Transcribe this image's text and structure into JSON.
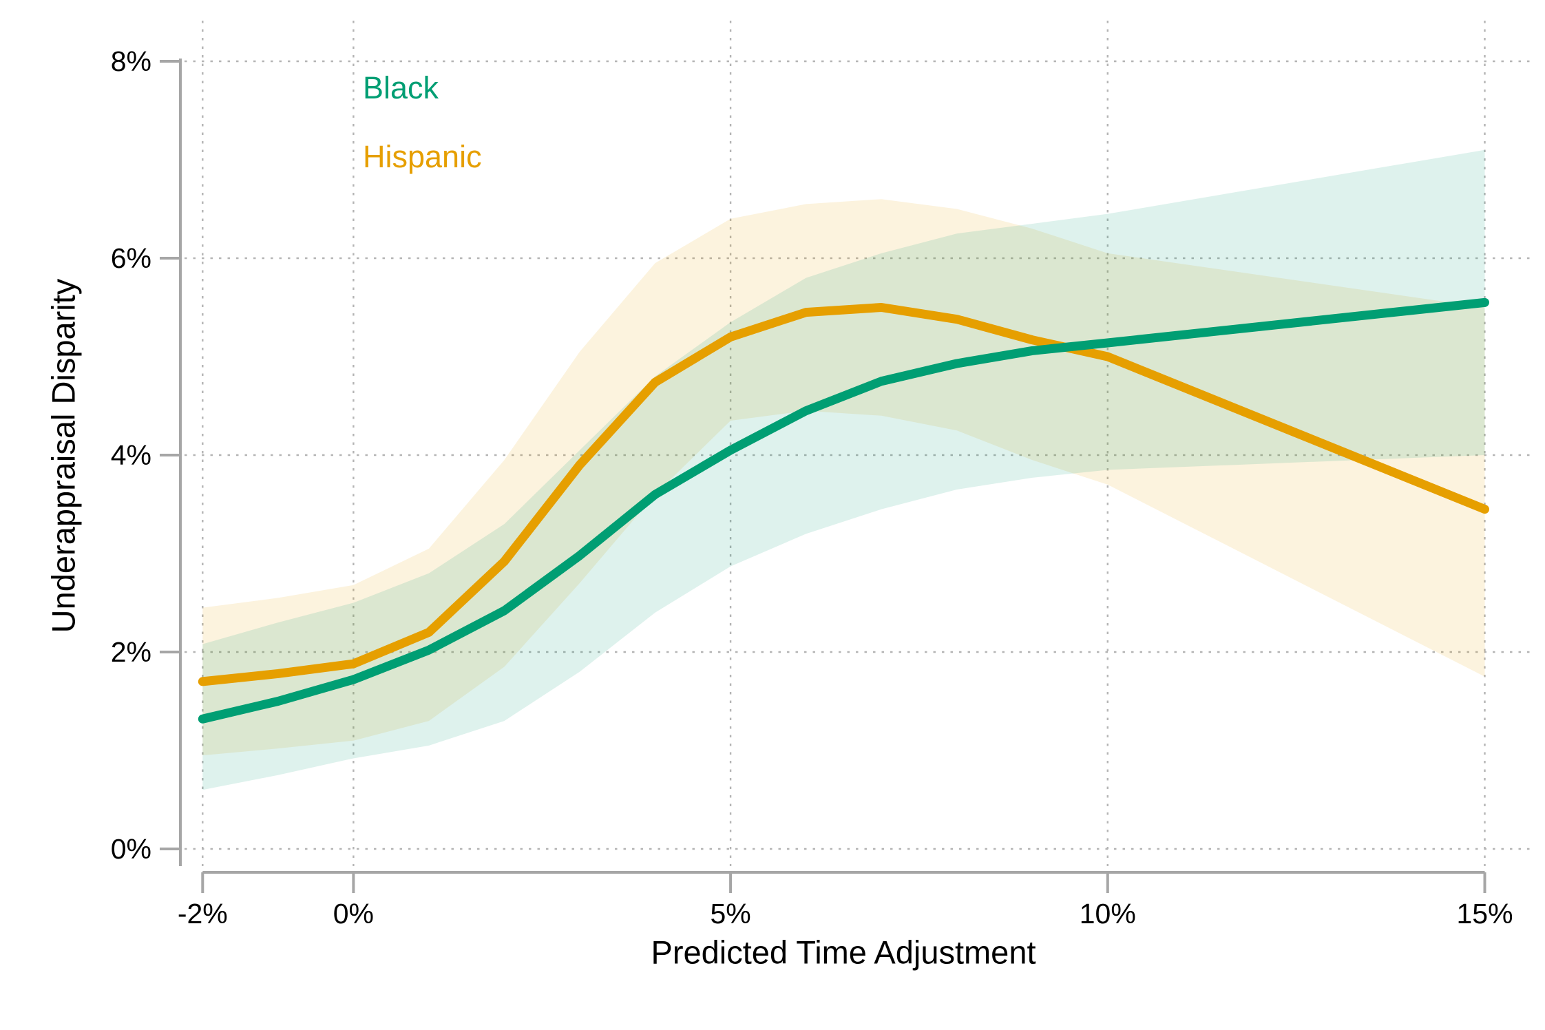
{
  "chart_data": {
    "type": "line",
    "title": "",
    "xlabel": "Predicted Time Adjustment",
    "ylabel": "Underappraisal Disparity",
    "xlim": [
      -2,
      15
    ],
    "ylim": [
      0,
      8
    ],
    "grid": "dotted gridlines at labeled ticks, light gray",
    "legend_position": "top-left inside plot area, stacked colored text labels",
    "x_ticks": [
      {
        "value": -2,
        "label": "-2%"
      },
      {
        "value": 0,
        "label": "0%"
      },
      {
        "value": 5,
        "label": "5%"
      },
      {
        "value": 10,
        "label": "10%"
      },
      {
        "value": 15,
        "label": "15%"
      }
    ],
    "y_ticks": [
      {
        "value": 0,
        "label": "0%"
      },
      {
        "value": 2,
        "label": "2%"
      },
      {
        "value": 4,
        "label": "4%"
      },
      {
        "value": 6,
        "label": "6%"
      },
      {
        "value": 8,
        "label": "8%"
      }
    ],
    "x": [
      -2,
      -1,
      0,
      1,
      2,
      3,
      4,
      5,
      6,
      7,
      8,
      9,
      10,
      15
    ],
    "series": [
      {
        "name": "Black",
        "color": "#009E73",
        "values": [
          1.32,
          1.5,
          1.72,
          2.02,
          2.42,
          2.98,
          3.6,
          4.05,
          4.45,
          4.75,
          4.93,
          5.06,
          5.14,
          5.55
        ],
        "band_lower": [
          0.6,
          0.75,
          0.92,
          1.05,
          1.3,
          1.8,
          2.4,
          2.87,
          3.2,
          3.45,
          3.65,
          3.77,
          3.85,
          4.0
        ],
        "band_upper": [
          2.08,
          2.3,
          2.5,
          2.8,
          3.3,
          4.05,
          4.8,
          5.35,
          5.8,
          6.05,
          6.25,
          6.35,
          6.45,
          7.1
        ]
      },
      {
        "name": "Hispanic",
        "color": "#E69F00",
        "values": [
          1.7,
          1.78,
          1.88,
          2.2,
          2.92,
          3.9,
          4.74,
          5.2,
          5.45,
          5.5,
          5.38,
          5.17,
          5.0,
          3.45
        ],
        "band_lower": [
          0.95,
          1.02,
          1.1,
          1.3,
          1.85,
          2.7,
          3.6,
          4.35,
          4.45,
          4.4,
          4.25,
          3.95,
          3.7,
          1.75
        ],
        "band_upper": [
          2.45,
          2.55,
          2.68,
          3.05,
          3.95,
          5.05,
          5.95,
          6.4,
          6.55,
          6.6,
          6.5,
          6.3,
          6.05,
          5.5
        ]
      }
    ],
    "band_opacity": 0.13
  },
  "legend": {
    "items": [
      {
        "label": "Black",
        "color": "#009E73"
      },
      {
        "label": "Hispanic",
        "color": "#E69F00"
      }
    ]
  },
  "axis_titles": {
    "x": "Predicted Time Adjustment",
    "y": "Underappraisal Disparity"
  },
  "colors": {
    "background": "#ffffff",
    "axis_line": "#a6a6a6",
    "gridline": "#b4b4b4",
    "text": "#000000"
  }
}
